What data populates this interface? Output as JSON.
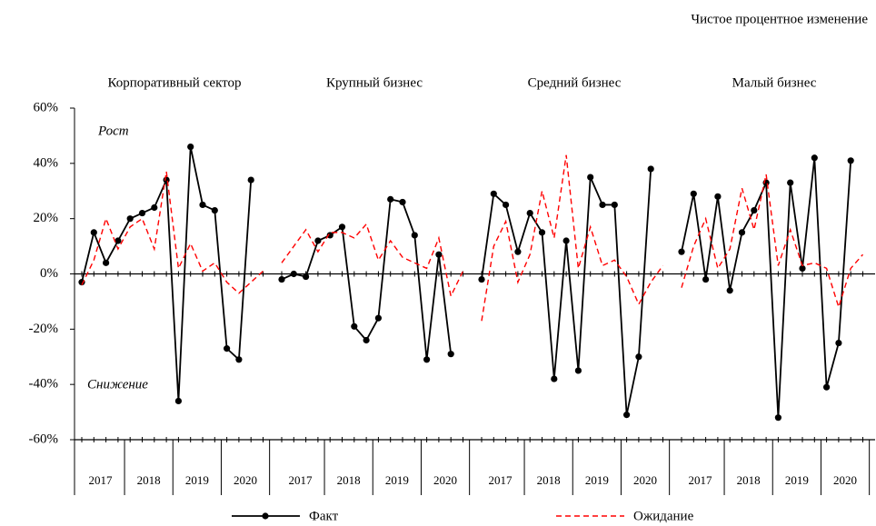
{
  "chart_data": {
    "type": "line",
    "title": "Чистое процентное изменение",
    "annotations": [
      "Рост",
      "Снижение"
    ],
    "groups": [
      {
        "name": "Корпоративный сектор",
        "years": [
          "2017",
          "2018",
          "2019",
          "2020"
        ]
      },
      {
        "name": "Крупный бизнес",
        "years": [
          "2017",
          "2018",
          "2019",
          "2020"
        ]
      },
      {
        "name": "Средний бизнес",
        "years": [
          "2017",
          "2018",
          "2019",
          "2020"
        ]
      },
      {
        "name": "Малый бизнес",
        "years": [
          "2017",
          "2018",
          "2019",
          "2020"
        ]
      }
    ],
    "series": [
      {
        "name": "Факт",
        "color": "#000000",
        "dashed": false,
        "markers": true,
        "values": [
          [
            -3,
            15,
            4,
            12,
            20,
            22,
            24,
            34,
            -46,
            46,
            25,
            23,
            -27,
            -31,
            34,
            null
          ],
          [
            -2,
            0,
            -1,
            12,
            14,
            17,
            -19,
            -24,
            -16,
            27,
            26,
            14,
            -31,
            7,
            -29,
            null
          ],
          [
            -2,
            29,
            25,
            8,
            22,
            15,
            -38,
            12,
            -35,
            35,
            25,
            25,
            -51,
            -30,
            38,
            null
          ],
          [
            8,
            29,
            -2,
            28,
            -6,
            15,
            23,
            33,
            -52,
            33,
            2,
            42,
            -41,
            -25,
            41,
            null
          ]
        ]
      },
      {
        "name": "Ожидание",
        "color": "#ff0000",
        "dashed": true,
        "markers": false,
        "values": [
          [
            -4,
            5,
            20,
            9,
            17,
            20,
            9,
            37,
            2,
            11,
            1,
            4,
            -3,
            -7,
            -3,
            1
          ],
          [
            4,
            10,
            16,
            8,
            15,
            15,
            13,
            18,
            5,
            12,
            6,
            4,
            2,
            13,
            -8,
            1
          ],
          [
            -17,
            10,
            19,
            -3,
            7,
            30,
            13,
            43,
            2,
            17,
            3,
            5,
            -1,
            -11,
            -3,
            3
          ],
          [
            -5,
            10,
            20,
            2,
            9,
            31,
            16,
            36,
            3,
            16,
            3,
            4,
            2,
            -12,
            2,
            7
          ]
        ]
      }
    ],
    "ylim": [
      -60,
      60
    ],
    "yticks": [
      {
        "value": -60,
        "label": "-60%"
      },
      {
        "value": -40,
        "label": "-40%"
      },
      {
        "value": -20,
        "label": "-20%"
      },
      {
        "value": 0,
        "label": "0%"
      },
      {
        "value": 20,
        "label": "20%"
      },
      {
        "value": 40,
        "label": "40%"
      },
      {
        "value": 60,
        "label": "60%"
      }
    ]
  }
}
